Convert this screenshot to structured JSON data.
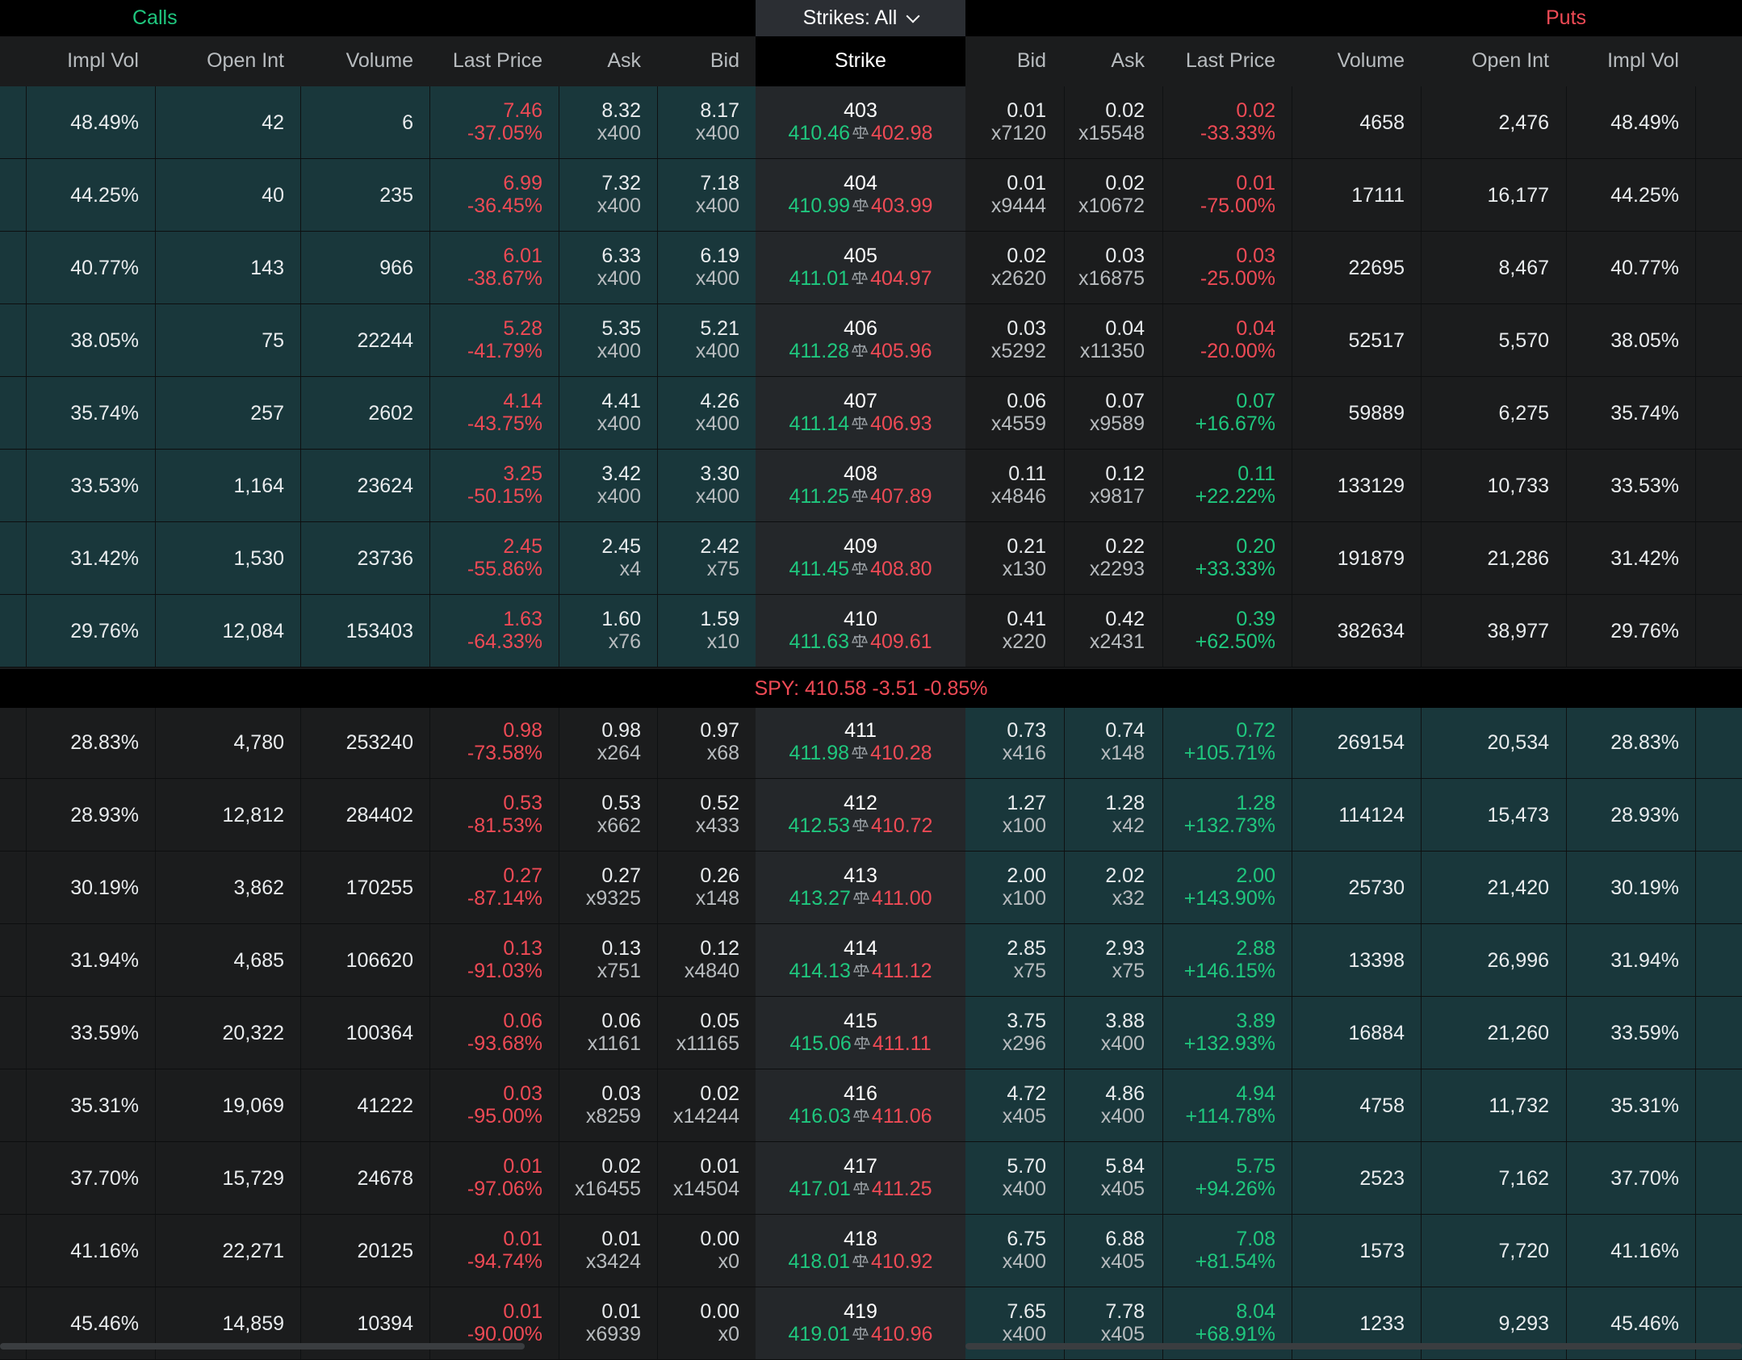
{
  "header": {
    "calls_label": "Calls",
    "puts_label": "Puts",
    "strike_filter": "Strikes: All",
    "calls_columns": [
      "Impl Vol",
      "Open Int",
      "Volume",
      "Last Price",
      "Ask",
      "Bid"
    ],
    "strike_column": "Strike",
    "puts_columns": [
      "Bid",
      "Ask",
      "Last Price",
      "Volume",
      "Open Int",
      "Impl Vol"
    ]
  },
  "underlying": {
    "text": "SPY:  410.58 -3.51 -0.85%"
  },
  "colors": {
    "call_itm_bg": "#19373b",
    "put_itm_bg": "#19373b",
    "otm_bg": "#1b1c1d",
    "up": "#1fc77e",
    "down": "#ef4a55"
  },
  "rows": [
    {
      "c_iv": "48.49%",
      "c_oi": "42",
      "c_vol": "6",
      "c_last": "7.46",
      "c_chg": "-37.05%",
      "c_ask": "8.32",
      "c_asksz": "x400",
      "c_bid": "8.17",
      "c_bidsz": "x400",
      "strike": "403",
      "s_lo": "410.46",
      "s_hi": "402.98",
      "p_bid": "0.01",
      "p_bidsz": "x7120",
      "p_ask": "0.02",
      "p_asksz": "x15548",
      "p_last": "0.02",
      "p_chg": "-33.33%",
      "p_dir": "down",
      "p_vol": "4658",
      "p_oi": "2,476",
      "p_iv": "48.49%"
    },
    {
      "c_iv": "44.25%",
      "c_oi": "40",
      "c_vol": "235",
      "c_last": "6.99",
      "c_chg": "-36.45%",
      "c_ask": "7.32",
      "c_asksz": "x400",
      "c_bid": "7.18",
      "c_bidsz": "x400",
      "strike": "404",
      "s_lo": "410.99",
      "s_hi": "403.99",
      "p_bid": "0.01",
      "p_bidsz": "x9444",
      "p_ask": "0.02",
      "p_asksz": "x10672",
      "p_last": "0.01",
      "p_chg": "-75.00%",
      "p_dir": "down",
      "p_vol": "17111",
      "p_oi": "16,177",
      "p_iv": "44.25%"
    },
    {
      "c_iv": "40.77%",
      "c_oi": "143",
      "c_vol": "966",
      "c_last": "6.01",
      "c_chg": "-38.67%",
      "c_ask": "6.33",
      "c_asksz": "x400",
      "c_bid": "6.19",
      "c_bidsz": "x400",
      "strike": "405",
      "s_lo": "411.01",
      "s_hi": "404.97",
      "p_bid": "0.02",
      "p_bidsz": "x2620",
      "p_ask": "0.03",
      "p_asksz": "x16875",
      "p_last": "0.03",
      "p_chg": "-25.00%",
      "p_dir": "down",
      "p_vol": "22695",
      "p_oi": "8,467",
      "p_iv": "40.77%"
    },
    {
      "c_iv": "38.05%",
      "c_oi": "75",
      "c_vol": "22244",
      "c_last": "5.28",
      "c_chg": "-41.79%",
      "c_ask": "5.35",
      "c_asksz": "x400",
      "c_bid": "5.21",
      "c_bidsz": "x400",
      "strike": "406",
      "s_lo": "411.28",
      "s_hi": "405.96",
      "p_bid": "0.03",
      "p_bidsz": "x5292",
      "p_ask": "0.04",
      "p_asksz": "x11350",
      "p_last": "0.04",
      "p_chg": "-20.00%",
      "p_dir": "down",
      "p_vol": "52517",
      "p_oi": "5,570",
      "p_iv": "38.05%"
    },
    {
      "c_iv": "35.74%",
      "c_oi": "257",
      "c_vol": "2602",
      "c_last": "4.14",
      "c_chg": "-43.75%",
      "c_ask": "4.41",
      "c_asksz": "x400",
      "c_bid": "4.26",
      "c_bidsz": "x400",
      "strike": "407",
      "s_lo": "411.14",
      "s_hi": "406.93",
      "p_bid": "0.06",
      "p_bidsz": "x4559",
      "p_ask": "0.07",
      "p_asksz": "x9589",
      "p_last": "0.07",
      "p_chg": "+16.67%",
      "p_dir": "up",
      "p_vol": "59889",
      "p_oi": "6,275",
      "p_iv": "35.74%"
    },
    {
      "c_iv": "33.53%",
      "c_oi": "1,164",
      "c_vol": "23624",
      "c_last": "3.25",
      "c_chg": "-50.15%",
      "c_ask": "3.42",
      "c_asksz": "x400",
      "c_bid": "3.30",
      "c_bidsz": "x400",
      "strike": "408",
      "s_lo": "411.25",
      "s_hi": "407.89",
      "p_bid": "0.11",
      "p_bidsz": "x4846",
      "p_ask": "0.12",
      "p_asksz": "x9817",
      "p_last": "0.11",
      "p_chg": "+22.22%",
      "p_dir": "up",
      "p_vol": "133129",
      "p_oi": "10,733",
      "p_iv": "33.53%"
    },
    {
      "c_iv": "31.42%",
      "c_oi": "1,530",
      "c_vol": "23736",
      "c_last": "2.45",
      "c_chg": "-55.86%",
      "c_ask": "2.45",
      "c_asksz": "x4",
      "c_bid": "2.42",
      "c_bidsz": "x75",
      "strike": "409",
      "s_lo": "411.45",
      "s_hi": "408.80",
      "p_bid": "0.21",
      "p_bidsz": "x130",
      "p_ask": "0.22",
      "p_asksz": "x2293",
      "p_last": "0.20",
      "p_chg": "+33.33%",
      "p_dir": "up",
      "p_vol": "191879",
      "p_oi": "21,286",
      "p_iv": "31.42%"
    },
    {
      "c_iv": "29.76%",
      "c_oi": "12,084",
      "c_vol": "153403",
      "c_last": "1.63",
      "c_chg": "-64.33%",
      "c_ask": "1.60",
      "c_asksz": "x76",
      "c_bid": "1.59",
      "c_bidsz": "x10",
      "strike": "410",
      "s_lo": "411.63",
      "s_hi": "409.61",
      "p_bid": "0.41",
      "p_bidsz": "x220",
      "p_ask": "0.42",
      "p_asksz": "x2431",
      "p_last": "0.39",
      "p_chg": "+62.50%",
      "p_dir": "up",
      "p_vol": "382634",
      "p_oi": "38,977",
      "p_iv": "29.76%"
    },
    {
      "c_iv": "28.83%",
      "c_oi": "4,780",
      "c_vol": "253240",
      "c_last": "0.98",
      "c_chg": "-73.58%",
      "c_ask": "0.98",
      "c_asksz": "x264",
      "c_bid": "0.97",
      "c_bidsz": "x68",
      "strike": "411",
      "s_lo": "411.98",
      "s_hi": "410.28",
      "p_bid": "0.73",
      "p_bidsz": "x416",
      "p_ask": "0.74",
      "p_asksz": "x148",
      "p_last": "0.72",
      "p_chg": "+105.71%",
      "p_dir": "up",
      "p_vol": "269154",
      "p_oi": "20,534",
      "p_iv": "28.83%"
    },
    {
      "c_iv": "28.93%",
      "c_oi": "12,812",
      "c_vol": "284402",
      "c_last": "0.53",
      "c_chg": "-81.53%",
      "c_ask": "0.53",
      "c_asksz": "x662",
      "c_bid": "0.52",
      "c_bidsz": "x433",
      "strike": "412",
      "s_lo": "412.53",
      "s_hi": "410.72",
      "p_bid": "1.27",
      "p_bidsz": "x100",
      "p_ask": "1.28",
      "p_asksz": "x42",
      "p_last": "1.28",
      "p_chg": "+132.73%",
      "p_dir": "up",
      "p_vol": "114124",
      "p_oi": "15,473",
      "p_iv": "28.93%"
    },
    {
      "c_iv": "30.19%",
      "c_oi": "3,862",
      "c_vol": "170255",
      "c_last": "0.27",
      "c_chg": "-87.14%",
      "c_ask": "0.27",
      "c_asksz": "x9325",
      "c_bid": "0.26",
      "c_bidsz": "x148",
      "strike": "413",
      "s_lo": "413.27",
      "s_hi": "411.00",
      "p_bid": "2.00",
      "p_bidsz": "x100",
      "p_ask": "2.02",
      "p_asksz": "x32",
      "p_last": "2.00",
      "p_chg": "+143.90%",
      "p_dir": "up",
      "p_vol": "25730",
      "p_oi": "21,420",
      "p_iv": "30.19%"
    },
    {
      "c_iv": "31.94%",
      "c_oi": "4,685",
      "c_vol": "106620",
      "c_last": "0.13",
      "c_chg": "-91.03%",
      "c_ask": "0.13",
      "c_asksz": "x751",
      "c_bid": "0.12",
      "c_bidsz": "x4840",
      "strike": "414",
      "s_lo": "414.13",
      "s_hi": "411.12",
      "p_bid": "2.85",
      "p_bidsz": "x75",
      "p_ask": "2.93",
      "p_asksz": "x75",
      "p_last": "2.88",
      "p_chg": "+146.15%",
      "p_dir": "up",
      "p_vol": "13398",
      "p_oi": "26,996",
      "p_iv": "31.94%"
    },
    {
      "c_iv": "33.59%",
      "c_oi": "20,322",
      "c_vol": "100364",
      "c_last": "0.06",
      "c_chg": "-93.68%",
      "c_ask": "0.06",
      "c_asksz": "x1161",
      "c_bid": "0.05",
      "c_bidsz": "x11165",
      "strike": "415",
      "s_lo": "415.06",
      "s_hi": "411.11",
      "p_bid": "3.75",
      "p_bidsz": "x296",
      "p_ask": "3.88",
      "p_asksz": "x400",
      "p_last": "3.89",
      "p_chg": "+132.93%",
      "p_dir": "up",
      "p_vol": "16884",
      "p_oi": "21,260",
      "p_iv": "33.59%"
    },
    {
      "c_iv": "35.31%",
      "c_oi": "19,069",
      "c_vol": "41222",
      "c_last": "0.03",
      "c_chg": "-95.00%",
      "c_ask": "0.03",
      "c_asksz": "x8259",
      "c_bid": "0.02",
      "c_bidsz": "x14244",
      "strike": "416",
      "s_lo": "416.03",
      "s_hi": "411.06",
      "p_bid": "4.72",
      "p_bidsz": "x405",
      "p_ask": "4.86",
      "p_asksz": "x400",
      "p_last": "4.94",
      "p_chg": "+114.78%",
      "p_dir": "up",
      "p_vol": "4758",
      "p_oi": "11,732",
      "p_iv": "35.31%"
    },
    {
      "c_iv": "37.70%",
      "c_oi": "15,729",
      "c_vol": "24678",
      "c_last": "0.01",
      "c_chg": "-97.06%",
      "c_ask": "0.02",
      "c_asksz": "x16455",
      "c_bid": "0.01",
      "c_bidsz": "x14504",
      "strike": "417",
      "s_lo": "417.01",
      "s_hi": "411.25",
      "p_bid": "5.70",
      "p_bidsz": "x400",
      "p_ask": "5.84",
      "p_asksz": "x405",
      "p_last": "5.75",
      "p_chg": "+94.26%",
      "p_dir": "up",
      "p_vol": "2523",
      "p_oi": "7,162",
      "p_iv": "37.70%"
    },
    {
      "c_iv": "41.16%",
      "c_oi": "22,271",
      "c_vol": "20125",
      "c_last": "0.01",
      "c_chg": "-94.74%",
      "c_ask": "0.01",
      "c_asksz": "x3424",
      "c_bid": "0.00",
      "c_bidsz": "x0",
      "strike": "418",
      "s_lo": "418.01",
      "s_hi": "410.92",
      "p_bid": "6.75",
      "p_bidsz": "x400",
      "p_ask": "6.88",
      "p_asksz": "x405",
      "p_last": "7.08",
      "p_chg": "+81.54%",
      "p_dir": "up",
      "p_vol": "1573",
      "p_oi": "7,720",
      "p_iv": "41.16%"
    },
    {
      "c_iv": "45.46%",
      "c_oi": "14,859",
      "c_vol": "10394",
      "c_last": "0.01",
      "c_chg": "-90.00%",
      "c_ask": "0.01",
      "c_asksz": "x6939",
      "c_bid": "0.00",
      "c_bidsz": "x0",
      "strike": "419",
      "s_lo": "419.01",
      "s_hi": "410.96",
      "p_bid": "7.65",
      "p_bidsz": "x400",
      "p_ask": "7.78",
      "p_asksz": "x405",
      "p_last": "8.04",
      "p_chg": "+68.91%",
      "p_dir": "up",
      "p_vol": "1233",
      "p_oi": "9,293",
      "p_iv": "45.46%"
    }
  ]
}
